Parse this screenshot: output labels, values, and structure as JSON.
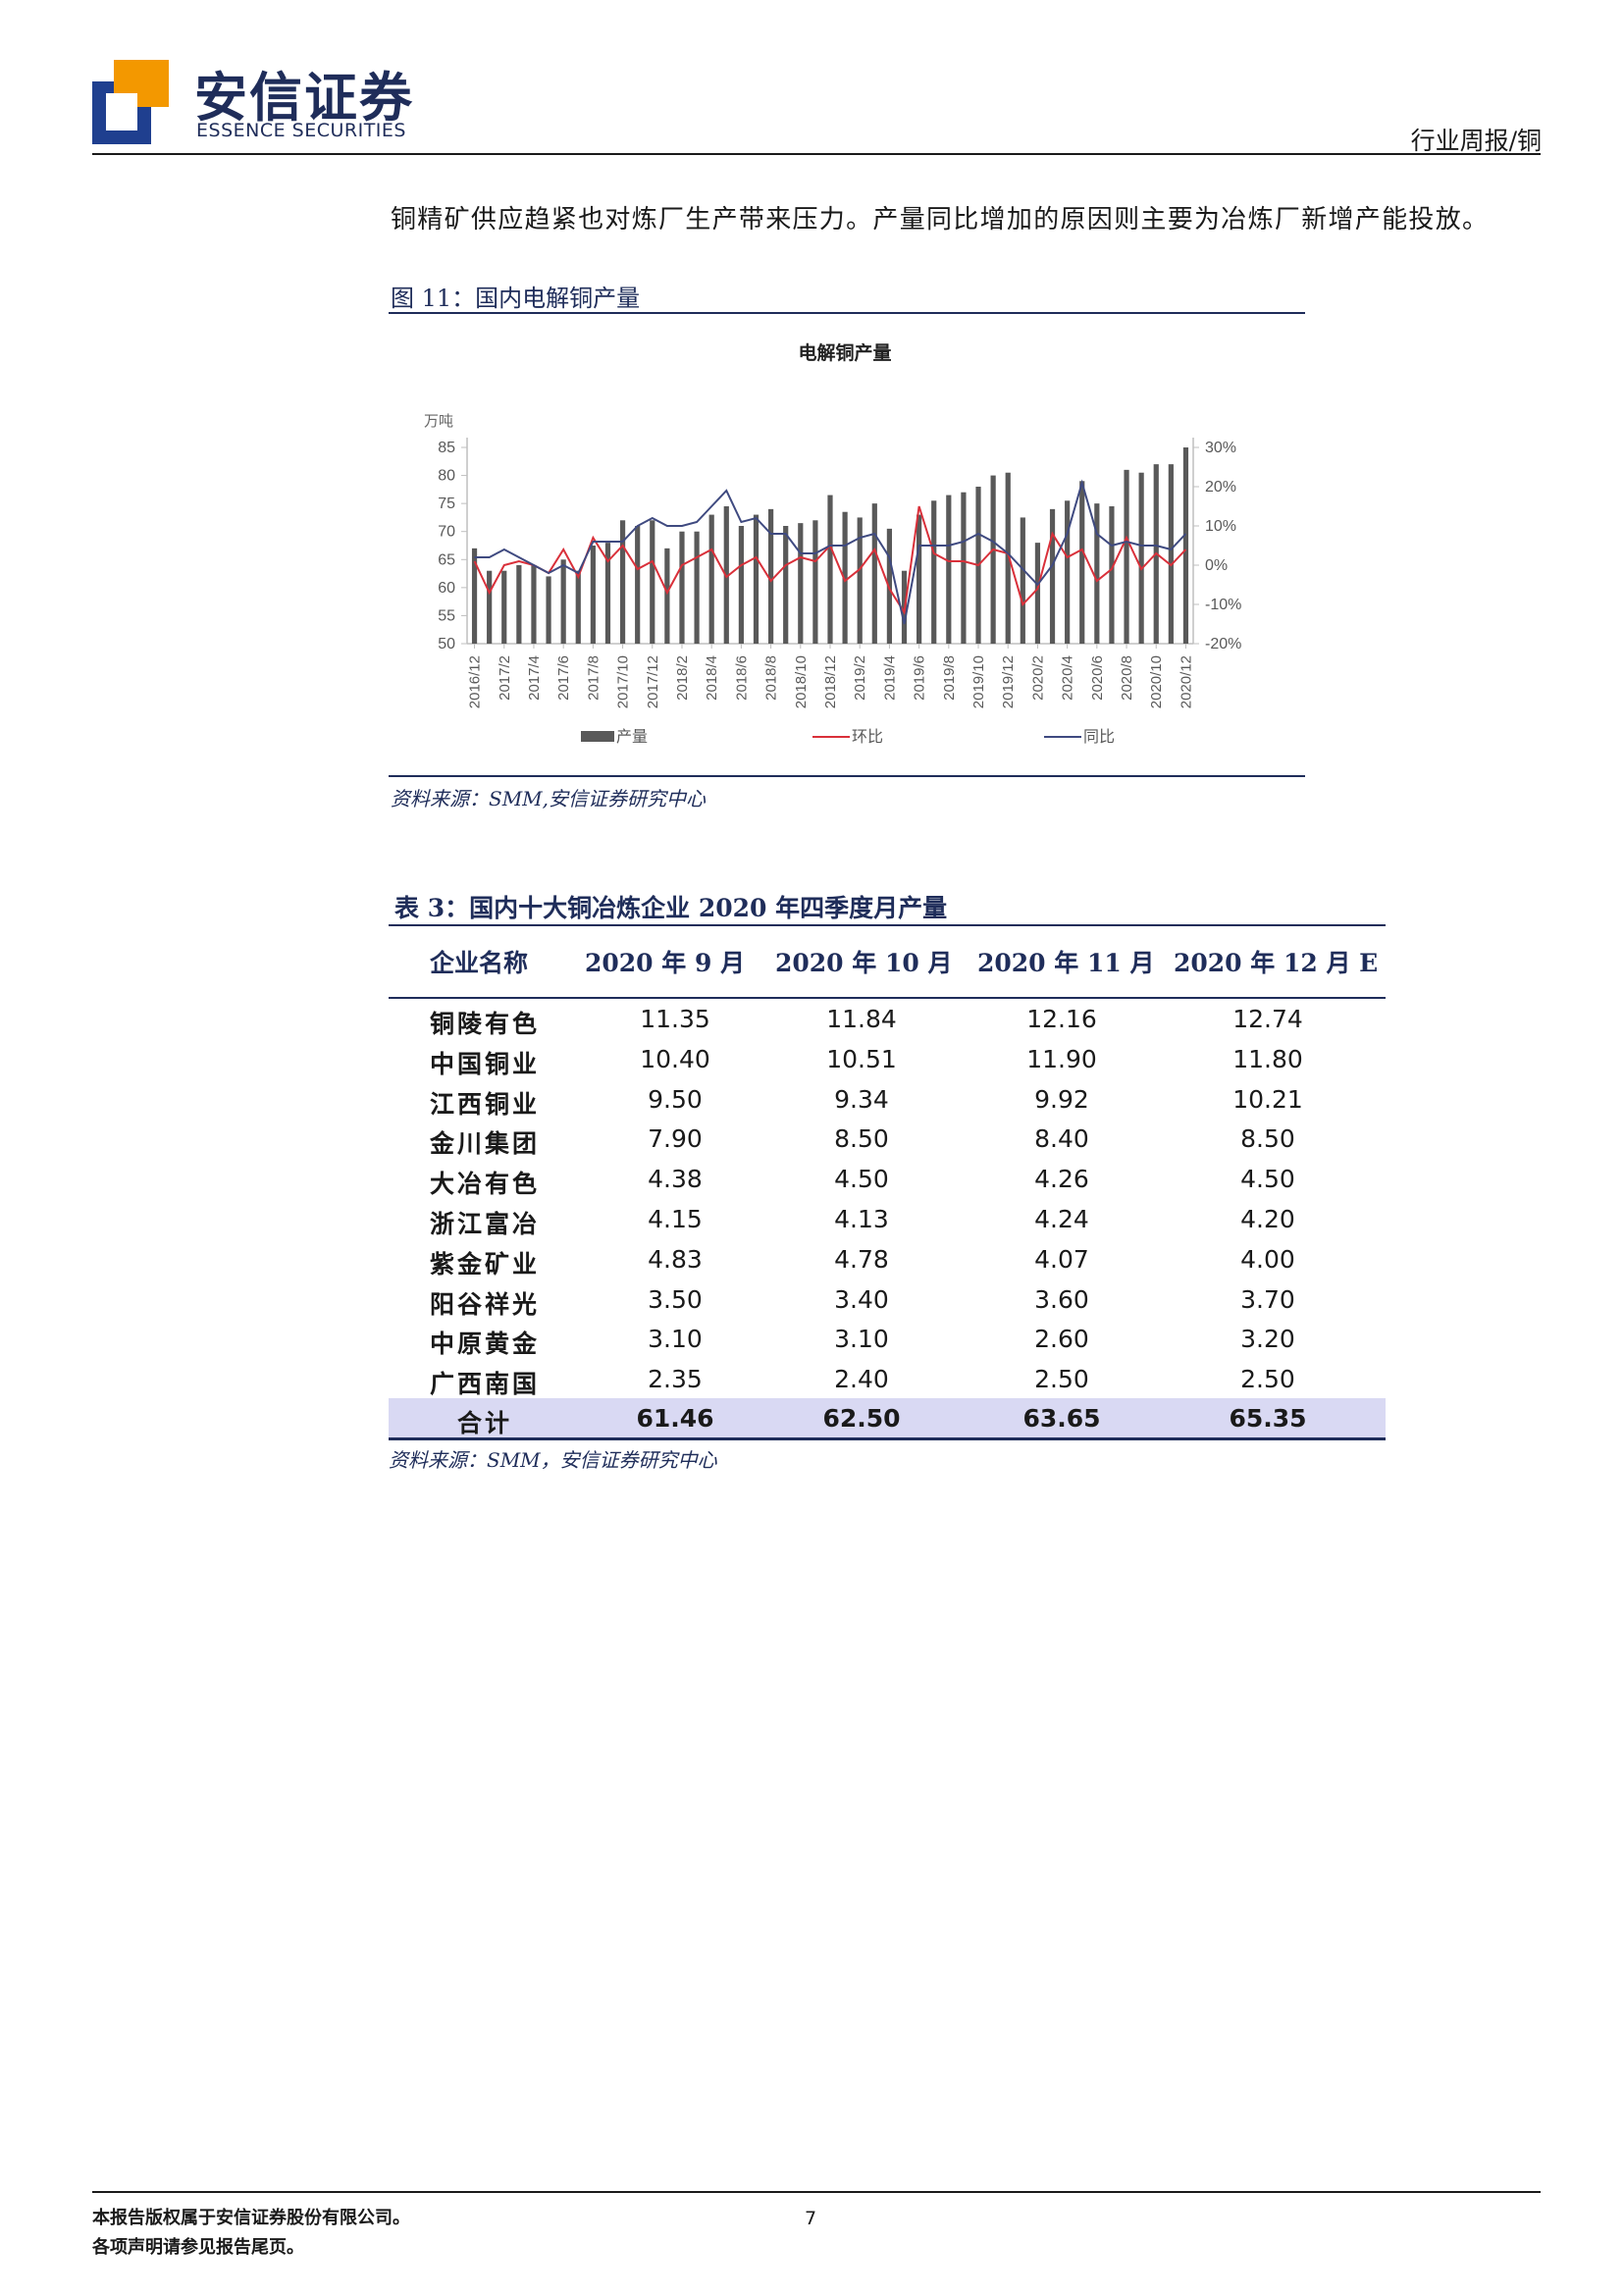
{
  "header": {
    "brand_cn": "安信证券",
    "brand_en": "ESSENCE SECURITIES",
    "report_type": "行业周报/铜",
    "colors": {
      "brand_blue": "#1f3f8f",
      "brand_orange": "#f39800"
    }
  },
  "intro_text": "铜精矿供应趋紧也对炼厂生产带来压力。产量同比增加的原因则主要为冶炼厂新增产能投放。",
  "figure": {
    "caption": "图 11：国内电解铜产量",
    "source": "资料来源：SMM,安信证券研究中心"
  },
  "chart_data": {
    "type": "bar",
    "title": "电解铜产量",
    "y_unit": "万吨",
    "ylim": [
      50,
      85
    ],
    "y_ticks": [
      "85",
      "80",
      "75",
      "70",
      "65",
      "60",
      "55",
      "50"
    ],
    "y2lim": [
      -20,
      30
    ],
    "y2_ticks": [
      "30%",
      "20%",
      "10%",
      "0%",
      "-10%",
      "-20%"
    ],
    "x_tick_labels": [
      "2016/12",
      "2017/2",
      "2017/4",
      "2017/6",
      "2017/8",
      "2017/10",
      "2017/12",
      "2018/2",
      "2018/4",
      "2018/6",
      "2018/8",
      "2018/10",
      "2018/12",
      "2019/2",
      "2019/4",
      "2019/6",
      "2019/8",
      "2019/10",
      "2019/12",
      "2020/2",
      "2020/4",
      "2020/6",
      "2020/8",
      "2020/10",
      "2020/12"
    ],
    "categories": [
      "2016/12",
      "2017/1",
      "2017/2",
      "2017/3",
      "2017/4",
      "2017/5",
      "2017/6",
      "2017/7",
      "2017/8",
      "2017/9",
      "2017/10",
      "2017/11",
      "2017/12",
      "2018/1",
      "2018/2",
      "2018/3",
      "2018/4",
      "2018/5",
      "2018/6",
      "2018/7",
      "2018/8",
      "2018/9",
      "2018/10",
      "2018/11",
      "2018/12",
      "2019/1",
      "2019/2",
      "2019/3",
      "2019/4",
      "2019/5",
      "2019/6",
      "2019/7",
      "2019/8",
      "2019/9",
      "2019/10",
      "2019/11",
      "2019/12",
      "2020/1",
      "2020/2",
      "2020/3",
      "2020/4",
      "2020/5",
      "2020/6",
      "2020/7",
      "2020/8",
      "2020/9",
      "2020/10",
      "2020/11",
      "2020/12"
    ],
    "legend": [
      "产量",
      "环比",
      "同比"
    ],
    "series": [
      {
        "name": "产量",
        "type": "bar",
        "color": "#595959",
        "values": [
          67,
          63,
          63,
          64,
          64,
          62,
          65,
          63,
          67.5,
          68,
          72,
          71,
          72,
          67,
          70,
          70,
          73,
          74.5,
          71,
          73,
          74,
          71,
          71.5,
          72,
          76.5,
          73.5,
          72.5,
          75,
          70.5,
          63,
          73,
          75.5,
          76.5,
          77,
          78,
          80,
          80.5,
          72.5,
          68,
          74,
          75.5,
          79,
          75,
          74.5,
          81,
          80.5,
          82,
          82,
          85
        ]
      },
      {
        "name": "环比",
        "type": "line",
        "axis": "y2",
        "color": "#d9303a",
        "values": [
          1,
          -7,
          0,
          1,
          0,
          -2,
          4,
          -3,
          7,
          1,
          5,
          -1,
          1,
          -7,
          0,
          2,
          4,
          -3,
          0,
          2,
          -4,
          0,
          2,
          1,
          5,
          -4,
          -1,
          4,
          -6,
          -12,
          15,
          3,
          1,
          1,
          0,
          4,
          3,
          -10,
          -6,
          8,
          2,
          4,
          -4,
          -1,
          7,
          -1,
          3,
          0,
          4
        ]
      },
      {
        "name": "同比",
        "type": "line",
        "axis": "y2",
        "color": "#3f4a80",
        "values": [
          2,
          2,
          4,
          2,
          0,
          -2,
          0,
          -2,
          6,
          6,
          6,
          10,
          12,
          10,
          10,
          11,
          15,
          19,
          11,
          12,
          8,
          8,
          3,
          3,
          5,
          5,
          7,
          8,
          2,
          -15,
          5,
          5,
          5,
          6,
          8,
          6,
          3,
          -1,
          -5,
          0,
          8,
          21,
          8,
          5,
          6,
          5,
          5,
          4,
          8
        ]
      }
    ]
  },
  "table": {
    "title_prefix": "表 3：",
    "title": "国内十大铜冶炼企业 2020 年四季度月产量",
    "headers": [
      "企业名称",
      "2020 年 9 月",
      "2020 年 10 月",
      "2020 年 11 月",
      "2020 年 12 月 E"
    ],
    "rows": [
      {
        "name": "铜陵有色",
        "v": [
          "11.35",
          "11.84",
          "12.16",
          "12.74"
        ]
      },
      {
        "name": "中国铜业",
        "v": [
          "10.40",
          "10.51",
          "11.90",
          "11.80"
        ]
      },
      {
        "name": "江西铜业",
        "v": [
          "9.50",
          "9.34",
          "9.92",
          "10.21"
        ]
      },
      {
        "name": "金川集团",
        "v": [
          "7.90",
          "8.50",
          "8.40",
          "8.50"
        ]
      },
      {
        "name": "大冶有色",
        "v": [
          "4.38",
          "4.50",
          "4.26",
          "4.50"
        ]
      },
      {
        "name": "浙江富冶",
        "v": [
          "4.15",
          "4.13",
          "4.24",
          "4.20"
        ]
      },
      {
        "name": "紫金矿业",
        "v": [
          "4.83",
          "4.78",
          "4.07",
          "4.00"
        ]
      },
      {
        "name": "阳谷祥光",
        "v": [
          "3.50",
          "3.40",
          "3.60",
          "3.70"
        ]
      },
      {
        "name": "中原黄金",
        "v": [
          "3.10",
          "3.10",
          "2.60",
          "3.20"
        ]
      },
      {
        "name": "广西南国",
        "v": [
          "2.35",
          "2.40",
          "2.50",
          "2.50"
        ]
      }
    ],
    "total": {
      "name": "合计",
      "v": [
        "61.46",
        "62.50",
        "63.65",
        "65.35"
      ]
    },
    "source": "资料来源：SMM，安信证券研究中心"
  },
  "footer": {
    "line1": "本报告版权属于安信证券股份有限公司。",
    "line2": "各项声明请参见报告尾页。",
    "page_number": "7"
  }
}
